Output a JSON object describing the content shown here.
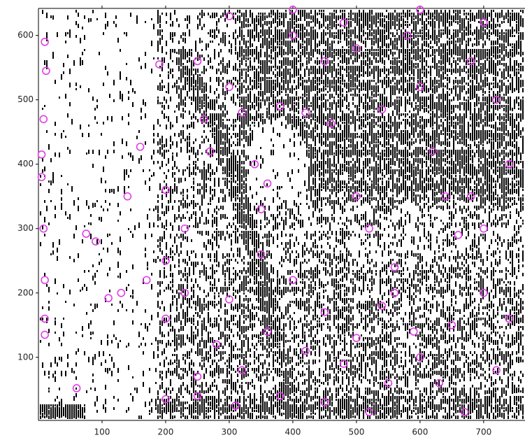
{
  "chart_data": {
    "type": "scatter",
    "color": "#e23de8",
    "xlim": [
      0,
      765
    ],
    "ylim": [
      2,
      642
    ],
    "xticks": [
      100,
      200,
      300,
      400,
      500,
      600,
      700
    ],
    "yticks": [
      100,
      200,
      300,
      400,
      500,
      600
    ],
    "x": [
      60,
      200,
      5,
      5,
      10,
      12,
      8,
      8,
      10,
      10,
      10,
      75,
      110,
      130,
      160,
      190,
      200,
      200,
      200,
      230,
      250,
      260,
      270,
      300,
      320,
      340,
      350,
      360,
      380,
      400,
      420,
      450,
      460,
      480,
      500,
      520,
      540,
      560,
      580,
      600,
      620,
      640,
      660,
      680,
      700,
      720,
      740,
      700,
      650,
      600,
      550,
      500,
      450,
      400,
      350,
      300,
      280,
      250,
      320,
      380,
      420,
      480,
      540,
      590,
      630,
      670,
      720,
      740,
      700,
      680,
      300,
      400,
      500,
      600,
      250,
      310,
      450,
      520,
      560,
      360,
      230,
      170,
      140,
      90
    ],
    "values": [
      52,
      35,
      415,
      380,
      590,
      545,
      470,
      300,
      220,
      160,
      135,
      292,
      192,
      200,
      427,
      555,
      360,
      250,
      160,
      300,
      560,
      470,
      420,
      520,
      480,
      400,
      330,
      370,
      490,
      600,
      480,
      560,
      463,
      620,
      350,
      300,
      485,
      240,
      600,
      520,
      420,
      350,
      290,
      560,
      620,
      500,
      400,
      200,
      150,
      100,
      60,
      130,
      170,
      220,
      260,
      190,
      120,
      70,
      80,
      40,
      110,
      90,
      180,
      140,
      60,
      15,
      80,
      160,
      300,
      350,
      630,
      640,
      580,
      640,
      40,
      25,
      30,
      15,
      200,
      140,
      200,
      220,
      350,
      280
    ]
  }
}
